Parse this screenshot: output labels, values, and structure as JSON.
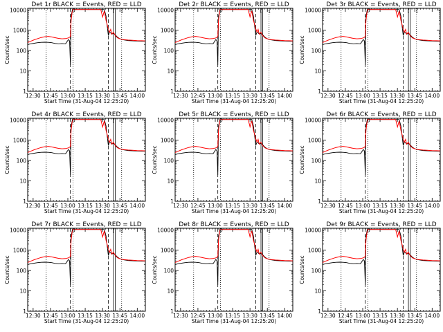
{
  "chart_data": {
    "type": "line",
    "shared": {
      "xlabel": "Start Time (31-Aug-04 12:25:20)",
      "ylabel": "Counts/sec",
      "x_ticks": [
        "12:30",
        "12:45",
        "13:00",
        "13:15",
        "13:30",
        "13:45",
        "14:00"
      ],
      "x_tick_minutes": [
        30,
        45,
        60,
        75,
        90,
        105,
        120
      ],
      "xlim_minutes": [
        25.3,
        127
      ],
      "y_scale": "log",
      "ylim": [
        1,
        12000
      ],
      "y_ticks": [
        "1",
        "10",
        "100",
        "1000",
        "10000"
      ],
      "y_tick_values": [
        1,
        10,
        100,
        1000,
        10000
      ],
      "series_colors": {
        "events": "#000000",
        "lld": "#ff0000"
      },
      "vlines_dotted_minutes": [
        41.3,
        64.5,
        106.5
      ],
      "vlines_dashed_minutes": [
        62.2,
        95.0
      ],
      "vlines_solid_minutes": [
        99.5,
        101.0
      ],
      "x": [
        25.3,
        28,
        31,
        34,
        37,
        40,
        43,
        46,
        49,
        52,
        55,
        58,
        60.5,
        61.5,
        62.2,
        62.8,
        64,
        65,
        66.5,
        68,
        72,
        76,
        78.5,
        80,
        82,
        84,
        85.5,
        87,
        88.5,
        90,
        91.5,
        93,
        95,
        96,
        97,
        98,
        99.5,
        101,
        103,
        105,
        108,
        112,
        116,
        120,
        124,
        127
      ],
      "events": [
        200,
        215,
        230,
        245,
        255,
        260,
        255,
        245,
        225,
        215,
        220,
        215,
        350,
        300,
        20,
        5000,
        10500,
        10500,
        10500,
        10500,
        10500,
        10500,
        10500,
        10500,
        10500,
        10500,
        10500,
        10500,
        10500,
        10500,
        10500,
        5000,
        550,
        800,
        750,
        650,
        700,
        600,
        450,
        380,
        340,
        310,
        300,
        295,
        290,
        290
      ],
      "lld": [
        250,
        290,
        340,
        390,
        440,
        480,
        500,
        470,
        430,
        400,
        380,
        390,
        420,
        450,
        500,
        3000,
        10500,
        10500,
        10500,
        10500,
        10500,
        10500,
        10500,
        10500,
        10500,
        10500,
        10500,
        10500,
        10500,
        4500,
        9000,
        3000,
        1200,
        800,
        1100,
        650,
        800,
        550,
        420,
        380,
        350,
        330,
        320,
        310,
        305,
        300
      ],
      "legend_marks": [
        {
          "x": 65.0,
          "y": 10000,
          "label": "0"
        },
        {
          "x": 99.5,
          "y": 10000,
          "label": "["
        },
        {
          "x": 107.0,
          "y": 10000,
          "label": "["
        }
      ]
    },
    "panels": [
      {
        "title": "Det 1r BLACK = Events, RED = LLD"
      },
      {
        "title": "Det 2r BLACK = Events, RED = LLD"
      },
      {
        "title": "Det 3r BLACK = Events, RED = LLD"
      },
      {
        "title": "Det 4r BLACK = Events, RED = LLD"
      },
      {
        "title": "Det 5r BLACK = Events, RED = LLD"
      },
      {
        "title": "Det 6r BLACK = Events, RED = LLD"
      },
      {
        "title": "Det 7r BLACK = Events, RED = LLD"
      },
      {
        "title": "Det 8r BLACK = Events, RED = LLD"
      },
      {
        "title": "Det 9r BLACK = Events, RED = LLD"
      }
    ]
  }
}
